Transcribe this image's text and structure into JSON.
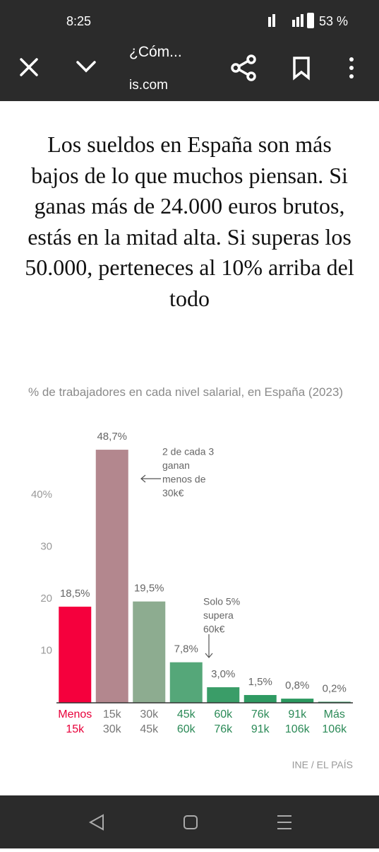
{
  "status_bar": {
    "time": "8:25",
    "battery": "53 %"
  },
  "toolbar": {
    "title": "¿Cóm...",
    "url": "is.com"
  },
  "headline": "Los sueldos en España son más bajos de lo que muchos piensan. Si ganas más de 24.000 euros brutos, estás en la mitad alta. Si superas los 50.000, perteneces al 10% arriba del todo",
  "chart_data": {
    "type": "bar",
    "subtitle": "% de trabajadores en cada nivel salarial, en España (2023)",
    "categories": [
      [
        "Menos",
        "15k"
      ],
      [
        "15k",
        "30k"
      ],
      [
        "30k",
        "45k"
      ],
      [
        "45k",
        "60k"
      ],
      [
        "60k",
        "76k"
      ],
      [
        "76k",
        "91k"
      ],
      [
        "91k",
        "106k"
      ],
      [
        "Más",
        "106k"
      ]
    ],
    "values": [
      18.5,
      48.7,
      19.5,
      7.8,
      3.0,
      1.5,
      0.8,
      0.2
    ],
    "value_labels": [
      "18,5%",
      "48,7%",
      "19,5%",
      "7,8%",
      "3,0%",
      "1,5%",
      "0,8%",
      "0,2%"
    ],
    "colors": [
      "#f5003d",
      "#b3878e",
      "#8dac90",
      "#55a779",
      "#3a9d68",
      "#2f9a62",
      "#2b985f",
      "#28965c"
    ],
    "label_colors": [
      "#e8003a",
      "#777777",
      "#777777",
      "#2b8a57",
      "#2b8a57",
      "#2b8a57",
      "#2b8a57",
      "#2b8a57"
    ],
    "ylim": [
      0,
      50
    ],
    "yticks": [
      10,
      20,
      30,
      {
        "value": 40,
        "label": "40%"
      }
    ],
    "grid": false,
    "annotations": [
      {
        "lines": [
          "2 de cada 3",
          "ganan",
          "menos de",
          "30k€"
        ]
      },
      {
        "lines": [
          "Solo 5%",
          "supera",
          "60k€"
        ]
      }
    ],
    "source": "INE / EL PAÍS"
  }
}
